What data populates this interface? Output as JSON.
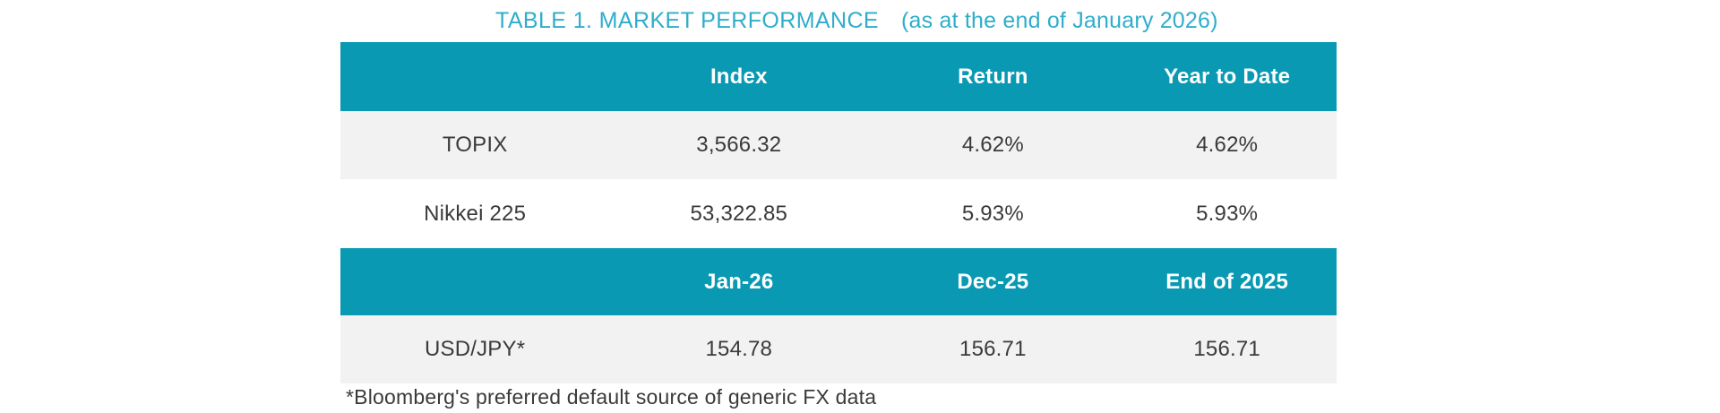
{
  "title": {
    "main": "TABLE 1. MARKET PERFORMANCE",
    "subtitle": "(as at the end of January 2026)"
  },
  "colors": {
    "header_band": "#0999b3",
    "title_text": "#2fadcb",
    "alt_row_bg": "#f2f2f2",
    "body_text": "#3a3a3c",
    "header_text": "#ffffff"
  },
  "table": {
    "section1": {
      "headers": [
        "",
        "Index",
        "Return",
        "Year to Date"
      ],
      "rows": [
        {
          "cells": [
            "TOPIX",
            "3,566.32",
            "4.62%",
            "4.62%"
          ]
        },
        {
          "cells": [
            "Nikkei 225",
            "53,322.85",
            "5.93%",
            "5.93%"
          ]
        }
      ]
    },
    "section2": {
      "headers": [
        "",
        "Jan-26",
        "Dec-25",
        "End of 2025"
      ],
      "rows": [
        {
          "cells": [
            "USD/JPY*",
            "154.78",
            "156.71",
            "156.71"
          ]
        }
      ]
    }
  },
  "footnote": "*Bloomberg's preferred default source of generic FX data"
}
